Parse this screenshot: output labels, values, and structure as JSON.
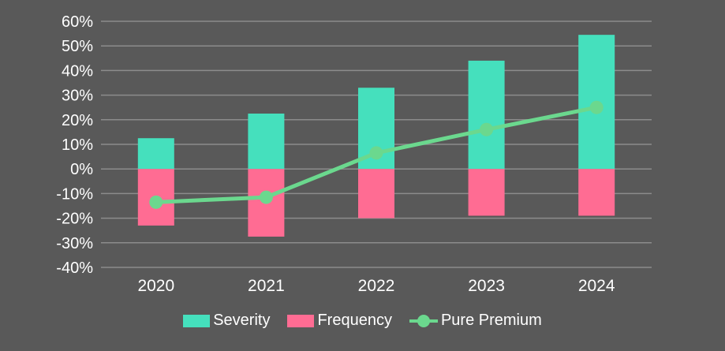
{
  "chart_data": {
    "type": "bar",
    "categories": [
      "2020",
      "2021",
      "2022",
      "2023",
      "2024"
    ],
    "series": [
      {
        "name": "Severity",
        "kind": "bar",
        "color": "#45e0bd",
        "values": [
          12.5,
          22.5,
          33,
          44,
          54.5
        ]
      },
      {
        "name": "Frequency",
        "kind": "bar",
        "color": "#ff6c93",
        "values": [
          -23,
          -27.5,
          -20,
          -19,
          -19
        ]
      },
      {
        "name": "Pure Premium",
        "kind": "line",
        "color": "#6bd88e",
        "values": [
          -13.5,
          -11.5,
          6.5,
          16,
          25
        ]
      }
    ],
    "ylim": [
      -40,
      60
    ],
    "yticks": [
      60,
      50,
      40,
      30,
      20,
      10,
      0,
      -10,
      -20,
      -30,
      -40
    ],
    "ytick_labels": [
      "60%",
      "50%",
      "40%",
      "30%",
      "20%",
      "10%",
      "0%",
      "-10%",
      "-20%",
      "-30%",
      "-40%"
    ],
    "grid": true,
    "legend_position": "bottom"
  }
}
